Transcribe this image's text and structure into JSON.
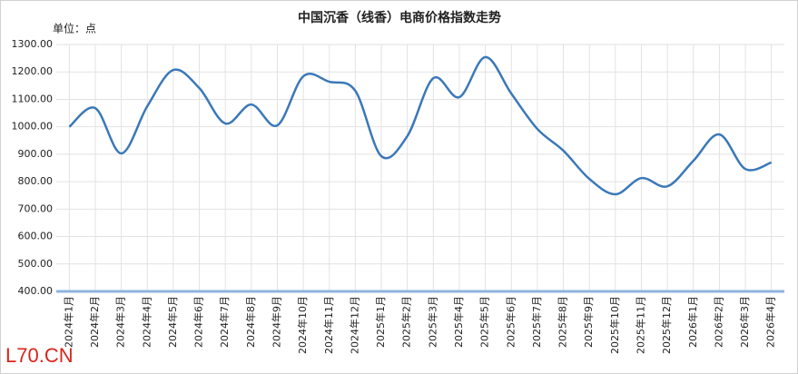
{
  "chart_data": {
    "type": "line",
    "title": "中国沉香（线香）电商价格指数走势",
    "y_unit_label": "单位：点",
    "watermark": "L70.CN",
    "categories": [
      "2024年1月",
      "2024年2月",
      "2024年3月",
      "2024年4月",
      "2024年5月",
      "2024年6月",
      "2024年7月",
      "2024年8月",
      "2024年9月",
      "2024年10月",
      "2024年11月",
      "2024年12月",
      "2025年1月",
      "2025年2月",
      "2025年3月",
      "2025年4月",
      "2025年5月",
      "2025年6月",
      "2025年7月",
      "2025年8月",
      "2025年9月",
      "2025年10月",
      "2025年11月",
      "2025年12月",
      "2026年1月",
      "2026年2月",
      "2026年3月",
      "2026年4月"
    ],
    "values": [
      1000,
      1068,
      903,
      1075,
      1207,
      1141,
      1012,
      1081,
      1005,
      1184,
      1164,
      1131,
      893,
      966,
      1177,
      1108,
      1254,
      1121,
      992,
      913,
      810,
      754,
      813,
      783,
      876,
      972,
      846,
      870
    ],
    "color": "#3b78b8",
    "ylim": [
      400,
      1300
    ],
    "yticks": [
      {
        "value": 400,
        "label": "400.00"
      },
      {
        "value": 500,
        "label": "500.00"
      },
      {
        "value": 600,
        "label": "600.00"
      },
      {
        "value": 700,
        "label": "700.00"
      },
      {
        "value": 800,
        "label": "800.00"
      },
      {
        "value": 900,
        "label": "900.00"
      },
      {
        "value": 1000,
        "label": "1000.00"
      },
      {
        "value": 1100,
        "label": "1100.00"
      },
      {
        "value": 1200,
        "label": "1200.00"
      },
      {
        "value": 1300,
        "label": "1300.00"
      }
    ],
    "grid": true
  }
}
